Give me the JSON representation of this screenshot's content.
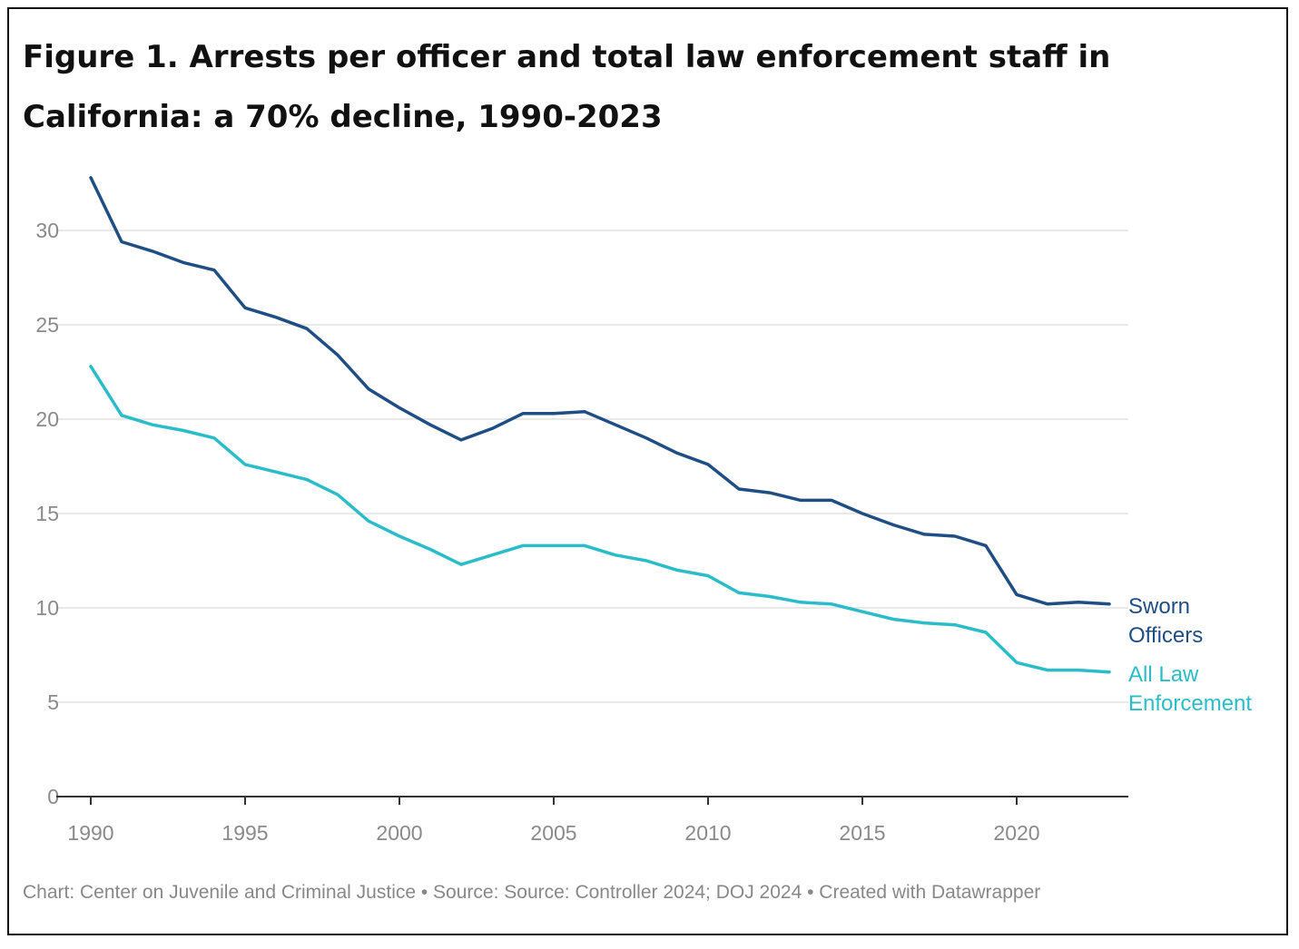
{
  "title": "Figure 1. Arrests per officer and total law enforcement staff in California: a 70% decline, 1990-2023",
  "footer": "Chart: Center on Juvenile and Criminal Justice • Source: Source: Controller 2024; DOJ 2024 • Created with Datawrapper",
  "chart_data": {
    "type": "line",
    "title": "Figure 1. Arrests per officer and total law enforcement staff in California: a 70% decline, 1990-2023",
    "xlabel": "",
    "ylabel": "",
    "xlim": [
      1990,
      2023
    ],
    "ylim": [
      0,
      30
    ],
    "x_ticks": [
      1990,
      1995,
      2000,
      2005,
      2010,
      2015,
      2020
    ],
    "y_ticks": [
      0,
      5,
      10,
      15,
      20,
      25,
      30
    ],
    "grid": true,
    "x": [
      1990,
      1991,
      1992,
      1993,
      1994,
      1995,
      1996,
      1997,
      1998,
      1999,
      2000,
      2001,
      2002,
      2003,
      2004,
      2005,
      2006,
      2007,
      2008,
      2009,
      2010,
      2011,
      2012,
      2013,
      2014,
      2015,
      2016,
      2017,
      2018,
      2019,
      2020,
      2021,
      2022,
      2023
    ],
    "series": [
      {
        "name": "Sworn Officers",
        "label_lines": [
          "Sworn",
          "Officers"
        ],
        "color": "#1f4e84",
        "values": [
          32.8,
          29.4,
          28.9,
          28.3,
          27.9,
          25.9,
          25.4,
          24.8,
          23.4,
          21.6,
          20.6,
          19.7,
          18.9,
          19.5,
          20.3,
          20.3,
          20.4,
          19.7,
          19.0,
          18.2,
          17.6,
          16.3,
          16.1,
          15.7,
          15.7,
          15.0,
          14.4,
          13.9,
          13.8,
          13.3,
          10.7,
          10.2,
          10.3,
          10.2
        ]
      },
      {
        "name": "All Law Enforcement",
        "label_lines": [
          "All Law",
          "Enforcement"
        ],
        "color": "#2bbcc9",
        "values": [
          22.8,
          20.2,
          19.7,
          19.4,
          19.0,
          17.6,
          17.2,
          16.8,
          16.0,
          14.6,
          13.8,
          13.1,
          12.3,
          12.8,
          13.3,
          13.3,
          13.3,
          12.8,
          12.5,
          12.0,
          11.7,
          10.8,
          10.6,
          10.3,
          10.2,
          9.8,
          9.4,
          9.2,
          9.1,
          8.7,
          7.1,
          6.7,
          6.7,
          6.6
        ]
      }
    ]
  }
}
